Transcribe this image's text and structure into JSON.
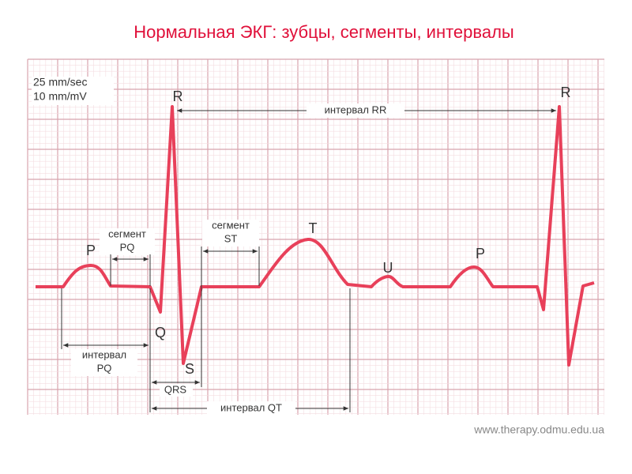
{
  "title": "Нормальная ЭКГ: зубцы, сегменты, интервалы",
  "settings": [
    "25 mm/sec",
    "10 mm/mV"
  ],
  "waves": [
    "P",
    "Q",
    "R",
    "S",
    "T",
    "U",
    "P",
    "R"
  ],
  "segments": {
    "pq": [
      "сегмент",
      "PQ"
    ],
    "st": [
      "сегмент",
      "ST"
    ]
  },
  "intervals": {
    "rr": "интервал RR",
    "pq": [
      "интервал",
      "PQ"
    ],
    "qrs": "QRS",
    "qt": "интервал QT"
  },
  "source": "www.therapy.odmu.edu.ua"
}
